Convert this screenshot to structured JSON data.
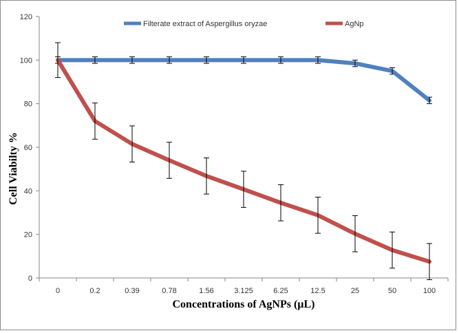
{
  "chart_data": {
    "type": "line",
    "title": "",
    "xlabel": "Concentrations of AgNPs (µL)",
    "ylabel": "Cell Viabilty %",
    "categories": [
      "0",
      "0.2",
      "0.39",
      "0.78",
      "1.56",
      "3.125",
      "6.25",
      "12.5",
      "25",
      "50",
      "100"
    ],
    "ylim": [
      0,
      120
    ],
    "yticks": [
      0,
      20,
      40,
      60,
      80,
      100,
      120
    ],
    "legend_position": "top",
    "series": [
      {
        "name": "Filterate extract of Aspergillus oryzae",
        "color": "#4f81bd",
        "values": [
          100,
          100,
          100,
          100,
          100,
          100,
          100,
          100,
          98.5,
          95,
          81.5
        ],
        "errors": [
          1.5,
          1.5,
          1.5,
          1.5,
          1.5,
          1.5,
          1.5,
          1.5,
          1.5,
          1.5,
          1.5
        ]
      },
      {
        "name": "AgNp",
        "color": "#c0504d",
        "values": [
          100,
          72,
          61.5,
          54,
          46.8,
          40.7,
          34.5,
          28.8,
          20.3,
          12.8,
          7.5
        ],
        "errors": [
          8,
          8.3,
          8.3,
          8.3,
          8.3,
          8.3,
          8.3,
          8.3,
          8.3,
          8.3,
          8.3
        ]
      }
    ]
  }
}
